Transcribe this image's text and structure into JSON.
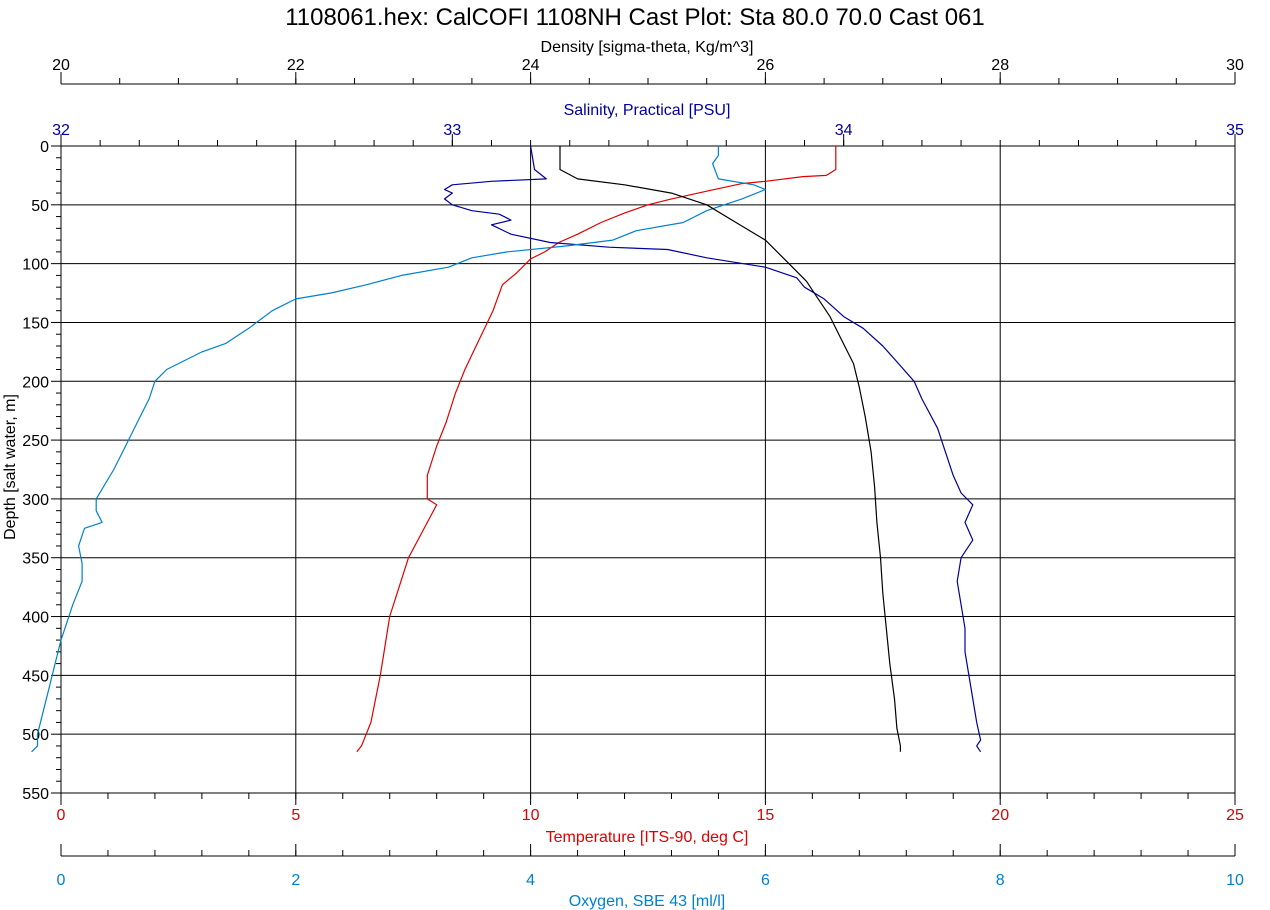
{
  "title": "1108061.hex: CalCOFI 1108NH Cast Plot: Sta 80.0 70.0 Cast 061",
  "colors": {
    "density": "#000000",
    "salinity": "#00009c",
    "temperature": "#e00000",
    "oxygen": "#0080d0",
    "grid": "#000000"
  },
  "chart_data": {
    "type": "line",
    "title": "1108061.hex: CalCOFI 1108NH Cast Plot: Sta 80.0 70.0 Cast 061",
    "ylabel": "Depth [salt water, m]",
    "ylim": [
      0,
      550
    ],
    "y_inverted": true,
    "grid": true,
    "y_ticks": [
      "0",
      "50",
      "100",
      "150",
      "200",
      "250",
      "300",
      "350",
      "400",
      "450",
      "500",
      "550"
    ],
    "axes": {
      "density": {
        "label": "Density [sigma-theta, Kg/m^3]",
        "position": "top",
        "range": [
          20,
          30
        ],
        "ticks": [
          "20",
          "22",
          "24",
          "26",
          "28",
          "30"
        ]
      },
      "salinity": {
        "label": "Salinity, Practical [PSU]",
        "position": "top",
        "range": [
          32,
          35
        ],
        "ticks": [
          "32",
          "33",
          "34",
          "35"
        ]
      },
      "temperature": {
        "label": "Temperature [ITS-90, deg C]",
        "position": "bottom",
        "range": [
          0,
          25
        ],
        "ticks": [
          "0",
          "5",
          "10",
          "15",
          "20",
          "25"
        ]
      },
      "oxygen": {
        "label": "Oxygen, SBE 43 [ml/l]",
        "position": "bottom",
        "range": [
          0,
          10
        ],
        "ticks": [
          "0",
          "2",
          "4",
          "6",
          "8",
          "10"
        ]
      }
    },
    "series": [
      {
        "key": "temperature",
        "axis": "temperature",
        "points": [
          [
            16.5,
            0
          ],
          [
            16.5,
            20
          ],
          [
            16.3,
            25
          ],
          [
            15.8,
            26
          ],
          [
            15.0,
            30
          ],
          [
            14.5,
            32
          ],
          [
            13.8,
            38
          ],
          [
            13.0,
            45
          ],
          [
            12.5,
            50
          ],
          [
            12.0,
            57
          ],
          [
            11.5,
            65
          ],
          [
            11.0,
            75
          ],
          [
            10.6,
            82
          ],
          [
            10.3,
            90
          ],
          [
            10.0,
            96
          ],
          [
            9.7,
            108
          ],
          [
            9.4,
            118
          ],
          [
            9.2,
            140
          ],
          [
            8.9,
            165
          ],
          [
            8.6,
            190
          ],
          [
            8.4,
            210
          ],
          [
            8.2,
            235
          ],
          [
            8.0,
            255
          ],
          [
            7.8,
            280
          ],
          [
            7.8,
            300
          ],
          [
            8.0,
            305
          ],
          [
            7.8,
            320
          ],
          [
            7.6,
            335
          ],
          [
            7.4,
            350
          ],
          [
            7.2,
            375
          ],
          [
            7.0,
            400
          ],
          [
            6.9,
            425
          ],
          [
            6.8,
            450
          ],
          [
            6.7,
            470
          ],
          [
            6.6,
            490
          ],
          [
            6.5,
            500
          ],
          [
            6.4,
            510
          ],
          [
            6.3,
            515
          ]
        ]
      },
      {
        "key": "salinity",
        "axis": "salinity",
        "points": [
          [
            33.2,
            0
          ],
          [
            33.21,
            20
          ],
          [
            33.24,
            28
          ],
          [
            33.1,
            30
          ],
          [
            33.0,
            33
          ],
          [
            32.98,
            37
          ],
          [
            33.0,
            40
          ],
          [
            32.98,
            45
          ],
          [
            33.0,
            50
          ],
          [
            33.05,
            55
          ],
          [
            33.12,
            58
          ],
          [
            33.15,
            63
          ],
          [
            33.1,
            67
          ],
          [
            33.15,
            75
          ],
          [
            33.25,
            82
          ],
          [
            33.4,
            86
          ],
          [
            33.55,
            88
          ],
          [
            33.65,
            95
          ],
          [
            33.8,
            103
          ],
          [
            33.88,
            112
          ],
          [
            33.9,
            120
          ],
          [
            33.95,
            130
          ],
          [
            34.0,
            145
          ],
          [
            34.05,
            155
          ],
          [
            34.1,
            170
          ],
          [
            34.14,
            185
          ],
          [
            34.18,
            200
          ],
          [
            34.2,
            215
          ],
          [
            34.24,
            240
          ],
          [
            34.26,
            260
          ],
          [
            34.28,
            280
          ],
          [
            34.3,
            295
          ],
          [
            34.33,
            305
          ],
          [
            34.31,
            320
          ],
          [
            34.33,
            335
          ],
          [
            34.3,
            350
          ],
          [
            34.29,
            370
          ],
          [
            34.3,
            390
          ],
          [
            34.31,
            410
          ],
          [
            34.31,
            430
          ],
          [
            34.32,
            450
          ],
          [
            34.33,
            470
          ],
          [
            34.34,
            490
          ],
          [
            34.35,
            505
          ],
          [
            34.34,
            510
          ],
          [
            34.35,
            515
          ]
        ]
      },
      {
        "key": "oxygen",
        "axis": "oxygen",
        "points": [
          [
            5.6,
            0
          ],
          [
            5.6,
            8
          ],
          [
            5.55,
            15
          ],
          [
            5.6,
            28
          ],
          [
            5.9,
            33
          ],
          [
            6.0,
            37
          ],
          [
            5.8,
            45
          ],
          [
            5.5,
            55
          ],
          [
            5.3,
            65
          ],
          [
            4.9,
            72
          ],
          [
            4.7,
            80
          ],
          [
            4.3,
            85
          ],
          [
            3.8,
            90
          ],
          [
            3.5,
            95
          ],
          [
            3.3,
            103
          ],
          [
            2.9,
            110
          ],
          [
            2.6,
            118
          ],
          [
            2.3,
            125
          ],
          [
            2.0,
            130
          ],
          [
            1.8,
            140
          ],
          [
            1.6,
            155
          ],
          [
            1.4,
            168
          ],
          [
            1.2,
            175
          ],
          [
            0.9,
            190
          ],
          [
            0.8,
            200
          ],
          [
            0.75,
            215
          ],
          [
            0.65,
            235
          ],
          [
            0.55,
            255
          ],
          [
            0.45,
            275
          ],
          [
            0.3,
            300
          ],
          [
            0.3,
            310
          ],
          [
            0.35,
            320
          ],
          [
            0.2,
            325
          ],
          [
            0.15,
            340
          ],
          [
            0.18,
            355
          ],
          [
            0.18,
            370
          ],
          [
            0.1,
            390
          ],
          [
            0.05,
            405
          ],
          [
            0.0,
            420
          ],
          [
            -0.05,
            440
          ],
          [
            -0.1,
            460
          ],
          [
            -0.15,
            480
          ],
          [
            -0.2,
            500
          ],
          [
            -0.2,
            510
          ],
          [
            -0.25,
            515
          ]
        ]
      },
      {
        "key": "density",
        "axis": "density",
        "points": [
          [
            24.25,
            0
          ],
          [
            24.25,
            20
          ],
          [
            24.4,
            28
          ],
          [
            24.8,
            33
          ],
          [
            25.2,
            40
          ],
          [
            25.5,
            50
          ],
          [
            25.75,
            65
          ],
          [
            26.0,
            80
          ],
          [
            26.2,
            100
          ],
          [
            26.35,
            115
          ],
          [
            26.45,
            130
          ],
          [
            26.55,
            145
          ],
          [
            26.65,
            165
          ],
          [
            26.75,
            185
          ],
          [
            26.8,
            205
          ],
          [
            26.85,
            230
          ],
          [
            26.9,
            260
          ],
          [
            26.93,
            290
          ],
          [
            26.95,
            320
          ],
          [
            26.98,
            350
          ],
          [
            27.0,
            380
          ],
          [
            27.03,
            410
          ],
          [
            27.06,
            440
          ],
          [
            27.1,
            470
          ],
          [
            27.12,
            495
          ],
          [
            27.15,
            510
          ],
          [
            27.15,
            515
          ]
        ]
      }
    ]
  }
}
